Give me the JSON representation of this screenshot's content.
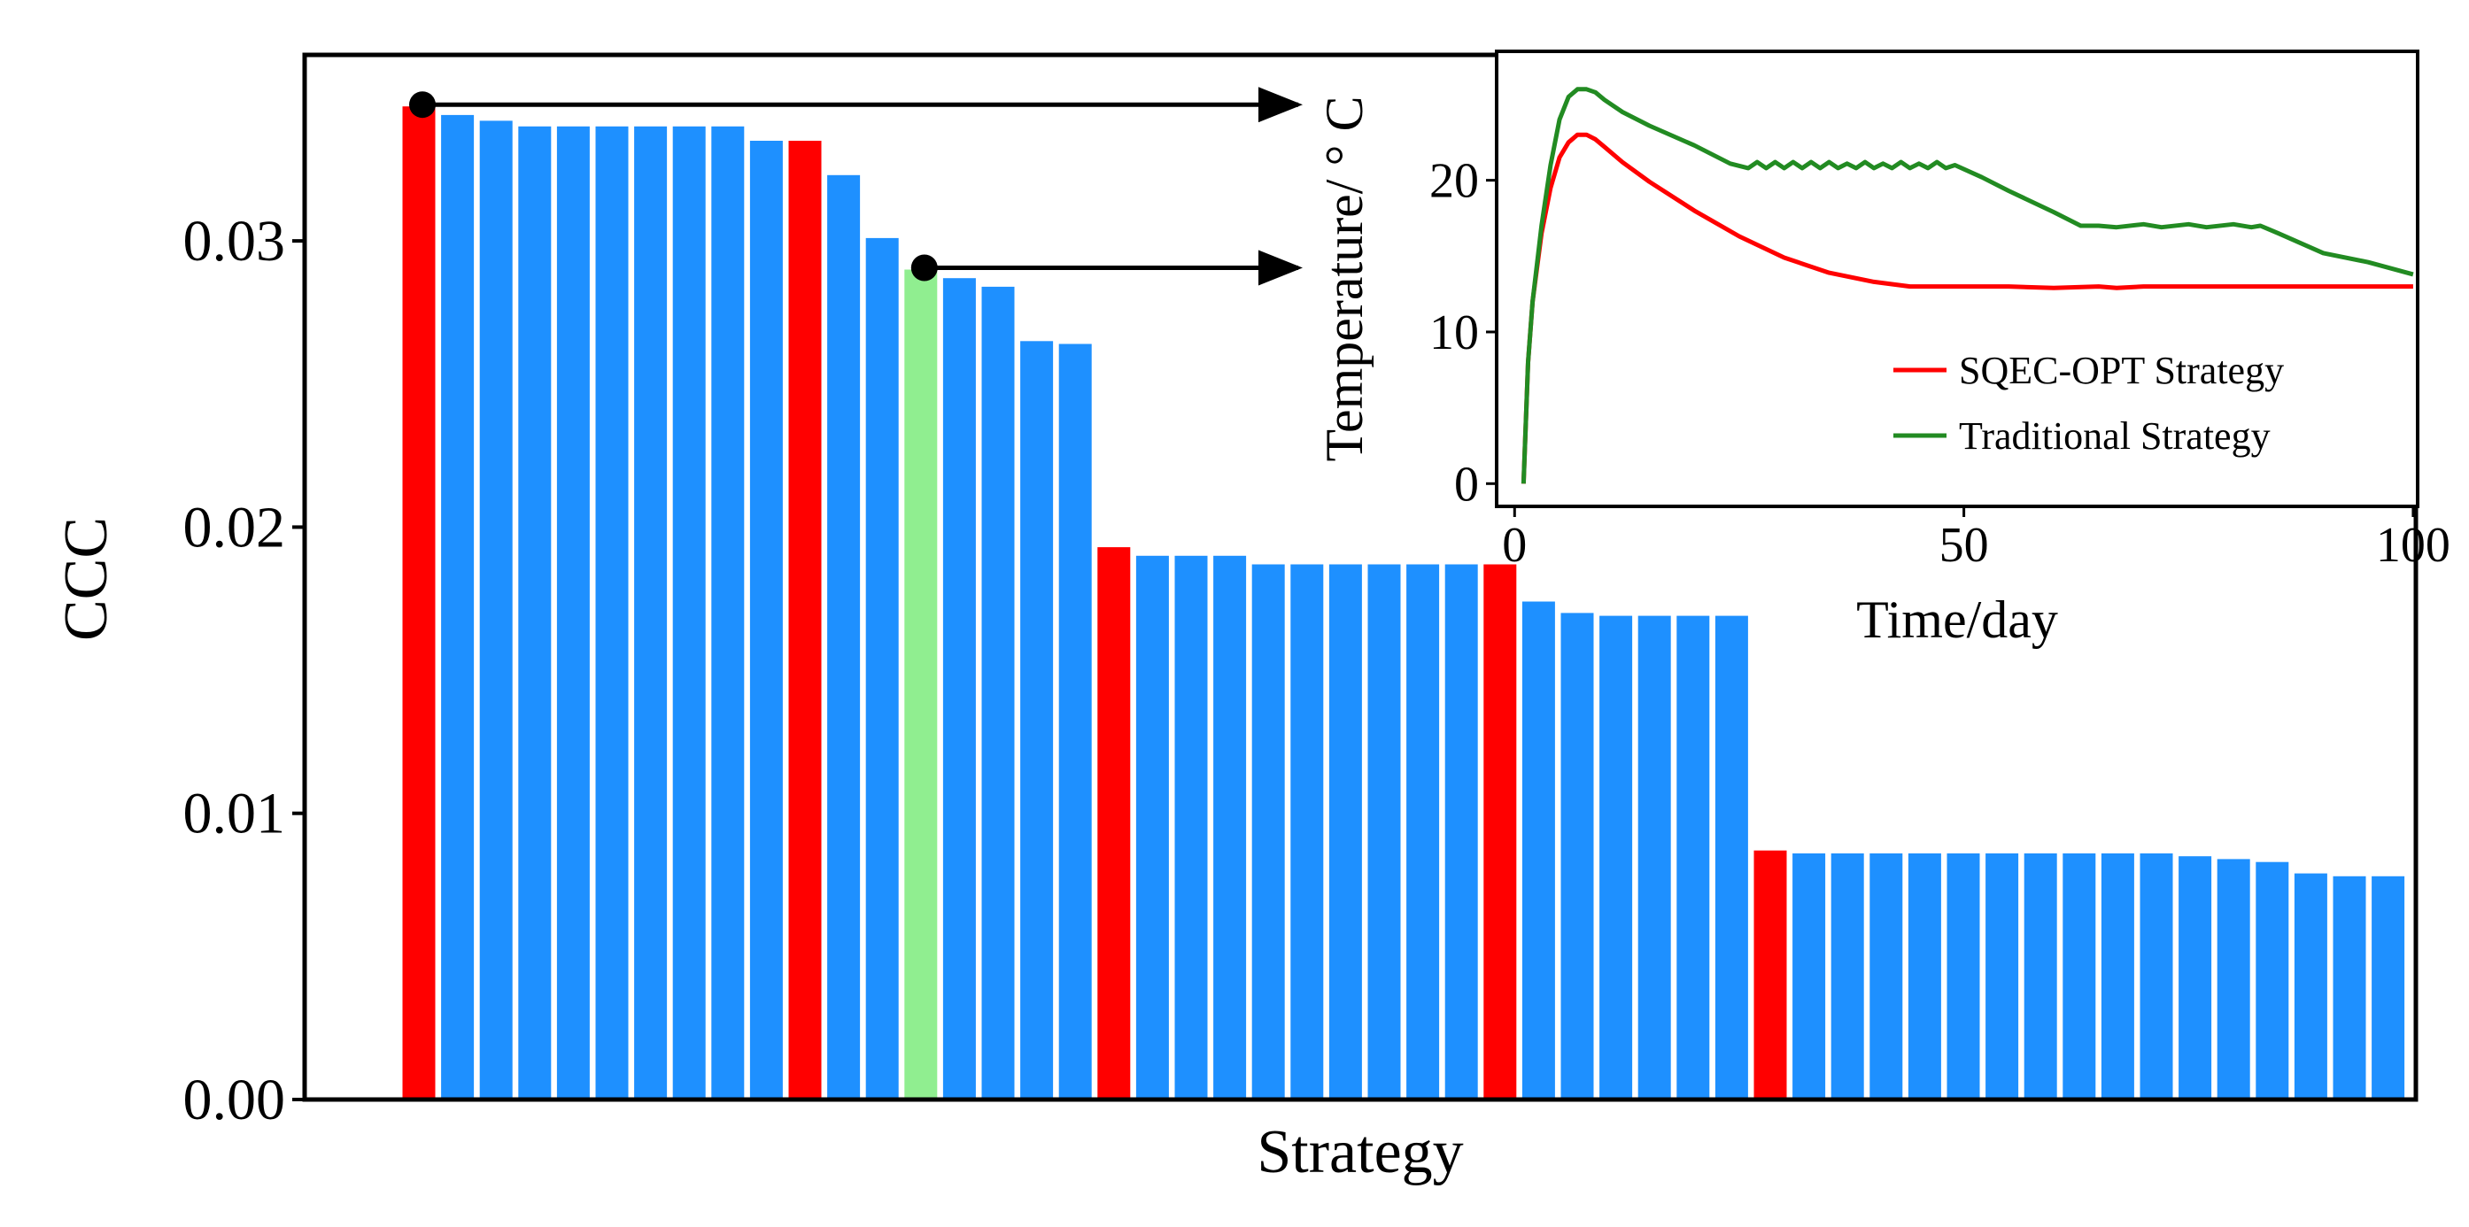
{
  "chart_data": [
    {
      "id": "main",
      "type": "bar",
      "xlabel": "Strategy",
      "ylabel": "CCC",
      "ylim": [
        0,
        0.0365
      ],
      "yticks": [
        0.0,
        0.01,
        0.02,
        0.03
      ],
      "ytick_labels": [
        "0.00",
        "0.01",
        "0.02",
        "0.03"
      ],
      "grid": false,
      "colors": {
        "highlight": "#ff0000",
        "normal": "#1e90ff",
        "selected": "#90ee90"
      },
      "values": [
        0.0347,
        0.0344,
        0.0342,
        0.034,
        0.034,
        0.034,
        0.034,
        0.034,
        0.034,
        0.0335,
        0.0335,
        0.0323,
        0.0301,
        0.029,
        0.0287,
        0.0284,
        0.0265,
        0.0264,
        0.0193,
        0.019,
        0.019,
        0.019,
        0.0187,
        0.0187,
        0.0187,
        0.0187,
        0.0187,
        0.0187,
        0.0187,
        0.0174,
        0.017,
        0.0169,
        0.0169,
        0.0169,
        0.0169,
        0.0087,
        0.0086,
        0.0086,
        0.0086,
        0.0086,
        0.0086,
        0.0086,
        0.0086,
        0.0086,
        0.0086,
        0.0086,
        0.0085,
        0.0084,
        0.0083,
        0.0079,
        0.0078,
        0.0078
      ],
      "bar_kinds": [
        "highlight",
        "normal",
        "normal",
        "normal",
        "normal",
        "normal",
        "normal",
        "normal",
        "normal",
        "normal",
        "highlight",
        "normal",
        "normal",
        "selected",
        "normal",
        "normal",
        "normal",
        "normal",
        "highlight",
        "normal",
        "normal",
        "normal",
        "normal",
        "normal",
        "normal",
        "normal",
        "normal",
        "normal",
        "highlight",
        "normal",
        "normal",
        "normal",
        "normal",
        "normal",
        "normal",
        "highlight",
        "normal",
        "normal",
        "normal",
        "normal",
        "normal",
        "normal",
        "normal",
        "normal",
        "normal",
        "normal",
        "normal",
        "normal",
        "normal",
        "normal",
        "normal",
        "normal"
      ],
      "annotations": [
        {
          "from_bar": 0,
          "points_to": "inset",
          "description": "arrow from best strategy bar to inset"
        },
        {
          "from_bar": 13,
          "points_to": "inset",
          "description": "arrow from traditional strategy bar to inset"
        }
      ]
    },
    {
      "id": "inset",
      "type": "line",
      "xlabel": "Time/day",
      "ylabel": "Temperature/ ° C",
      "xlim": [
        -2,
        100.5
      ],
      "ylim": [
        -1.5,
        28.5
      ],
      "xticks": [
        0,
        50,
        100
      ],
      "xtick_labels": [
        "0",
        "50",
        "100"
      ],
      "yticks": [
        0,
        10,
        20
      ],
      "ytick_labels": [
        "0",
        "10",
        "20"
      ],
      "legend_position": "lower-right",
      "series": [
        {
          "name": "SQEC-OPT Strategy",
          "color": "#ff0000",
          "x": [
            1,
            1.5,
            2,
            3,
            4,
            5,
            6,
            7,
            8,
            9,
            10,
            12,
            15,
            20,
            25,
            30,
            35,
            40,
            44,
            46,
            50,
            55,
            60,
            65,
            67,
            70,
            75,
            80,
            85,
            90,
            95,
            100
          ],
          "y": [
            0,
            8,
            12,
            16.5,
            19.5,
            21.5,
            22.5,
            23,
            23,
            22.7,
            22.2,
            21.2,
            19.9,
            18,
            16.3,
            14.9,
            13.9,
            13.3,
            13.0,
            13.0,
            13.0,
            13.0,
            12.9,
            13.0,
            12.9,
            13.0,
            13.0,
            13.0,
            13.0,
            13.0,
            13.0,
            13.0
          ]
        },
        {
          "name": "Traditional Strategy",
          "color": "#228b22",
          "x": [
            1,
            1.5,
            2,
            3,
            4,
            5,
            6,
            7,
            8,
            9,
            10,
            12,
            15,
            20,
            24,
            26,
            27,
            28,
            29,
            30,
            31,
            32,
            33,
            34,
            35,
            36,
            37,
            38,
            39,
            40,
            41,
            42,
            43,
            44,
            45,
            46,
            47,
            48,
            49,
            52,
            55,
            60,
            63,
            65,
            67,
            70,
            72,
            75,
            77,
            80,
            82,
            83,
            85,
            90,
            95,
            100
          ],
          "y": [
            0,
            8,
            12,
            17,
            21,
            24,
            25.5,
            26,
            26,
            25.8,
            25.3,
            24.5,
            23.6,
            22.3,
            21.1,
            20.8,
            21.2,
            20.8,
            21.2,
            20.8,
            21.2,
            20.8,
            21.2,
            20.8,
            21.2,
            20.8,
            21.1,
            20.8,
            21.2,
            20.8,
            21.1,
            20.8,
            21.2,
            20.8,
            21.1,
            20.8,
            21.2,
            20.8,
            21.0,
            20.2,
            19.3,
            17.9,
            17.0,
            17.0,
            16.9,
            17.1,
            16.9,
            17.1,
            16.9,
            17.1,
            16.9,
            17.0,
            16.5,
            15.2,
            14.6,
            13.8
          ]
        }
      ]
    }
  ]
}
